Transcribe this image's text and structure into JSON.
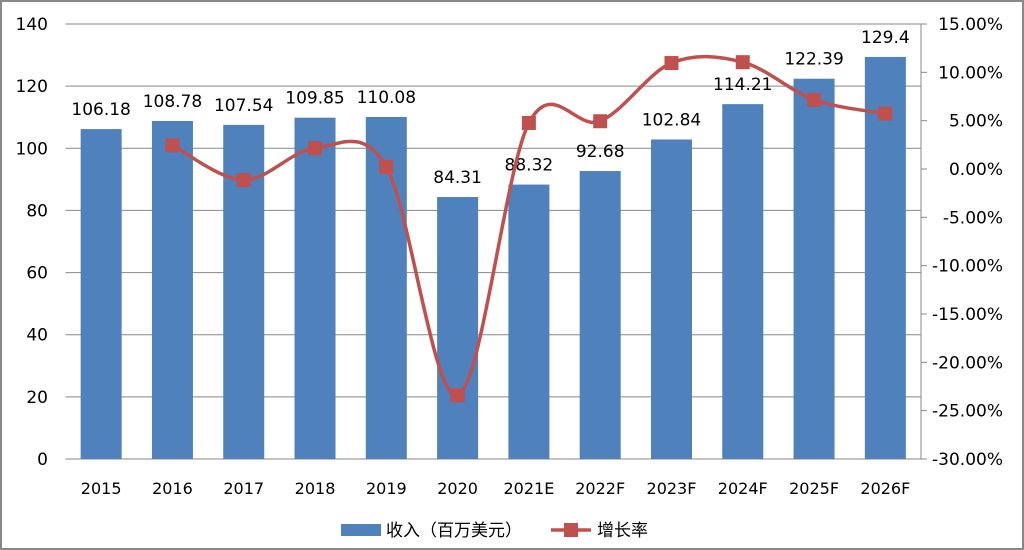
{
  "chart_data": {
    "type": "bar+line",
    "categories": [
      "2015",
      "2016",
      "2017",
      "2018",
      "2019",
      "2020",
      "2021E",
      "2022F",
      "2023F",
      "2024F",
      "2025F",
      "2026F"
    ],
    "series": [
      {
        "name": "收入（百万美元）",
        "type": "bar",
        "axis": "left",
        "color": "#4F81BD",
        "values": [
          106.18,
          108.78,
          107.54,
          109.85,
          110.08,
          84.31,
          88.32,
          92.68,
          102.84,
          114.21,
          122.39,
          129.4
        ],
        "labels": [
          "106.18",
          "108.78",
          "107.54",
          "109.85",
          "110.08",
          "84.31",
          "88.32",
          "92.68",
          "102.84",
          "114.21",
          "122.39",
          "129.4"
        ]
      },
      {
        "name": "增长率",
        "type": "line",
        "axis": "right",
        "color": "#C0504D",
        "values": [
          null,
          2.45,
          -1.14,
          2.15,
          0.21,
          -23.41,
          4.76,
          4.94,
          10.96,
          11.05,
          7.16,
          5.73
        ]
      }
    ],
    "y_left": {
      "range": [
        0,
        140
      ],
      "ticks": [
        "0",
        "20",
        "40",
        "60",
        "80",
        "100",
        "120",
        "140"
      ]
    },
    "y_right": {
      "range": [
        -30,
        15
      ],
      "ticks": [
        "-30.00%",
        "-25.00%",
        "-20.00%",
        "-15.00%",
        "-10.00%",
        "-5.00%",
        "0.00%",
        "5.00%",
        "10.00%",
        "15.00%"
      ]
    },
    "grid": true,
    "legend": "bottom"
  }
}
